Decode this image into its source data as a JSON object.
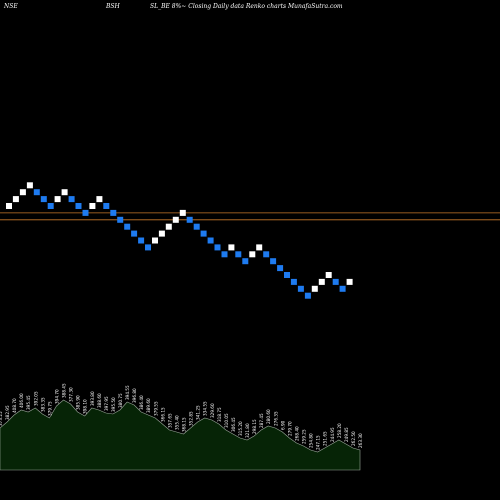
{
  "header": {
    "exchange": "NSE",
    "symbol": "BSH",
    "caption": "SL_BE 8%~ Closing Daily data  Renko  charts MunafaSutra.com"
  },
  "colors": {
    "background": "#000000",
    "up_brick": "#ffffff",
    "down_brick": "#1e7bf0",
    "level_line": "#c8782a",
    "volume_fill": "#062406",
    "volume_stroke": "#9aa89a",
    "volume_label": "#ffffff"
  },
  "chart_data": {
    "type": "renko",
    "title": "SL_BE 8%~ Closing Daily data  Renko  charts MunafaSutra.com",
    "bricks": [
      {
        "dir": "up",
        "level": 0
      },
      {
        "dir": "up",
        "level": 1
      },
      {
        "dir": "up",
        "level": 2
      },
      {
        "dir": "up",
        "level": 3
      },
      {
        "dir": "down",
        "level": 2
      },
      {
        "dir": "down",
        "level": 1
      },
      {
        "dir": "down",
        "level": 0
      },
      {
        "dir": "up",
        "level": 1
      },
      {
        "dir": "up",
        "level": 2
      },
      {
        "dir": "down",
        "level": 1
      },
      {
        "dir": "down",
        "level": 0
      },
      {
        "dir": "down",
        "level": -1
      },
      {
        "dir": "up",
        "level": 0
      },
      {
        "dir": "up",
        "level": 1
      },
      {
        "dir": "down",
        "level": 0
      },
      {
        "dir": "down",
        "level": -1
      },
      {
        "dir": "down",
        "level": -2
      },
      {
        "dir": "down",
        "level": -3
      },
      {
        "dir": "down",
        "level": -4
      },
      {
        "dir": "down",
        "level": -5
      },
      {
        "dir": "down",
        "level": -6
      },
      {
        "dir": "up",
        "level": -5
      },
      {
        "dir": "up",
        "level": -4
      },
      {
        "dir": "up",
        "level": -3
      },
      {
        "dir": "up",
        "level": -2
      },
      {
        "dir": "up",
        "level": -1
      },
      {
        "dir": "down",
        "level": -2
      },
      {
        "dir": "down",
        "level": -3
      },
      {
        "dir": "down",
        "level": -4
      },
      {
        "dir": "down",
        "level": -5
      },
      {
        "dir": "down",
        "level": -6
      },
      {
        "dir": "down",
        "level": -7
      },
      {
        "dir": "up",
        "level": -6
      },
      {
        "dir": "down",
        "level": -7
      },
      {
        "dir": "down",
        "level": -8
      },
      {
        "dir": "up",
        "level": -7
      },
      {
        "dir": "up",
        "level": -6
      },
      {
        "dir": "down",
        "level": -7
      },
      {
        "dir": "down",
        "level": -8
      },
      {
        "dir": "down",
        "level": -9
      },
      {
        "dir": "down",
        "level": -10
      },
      {
        "dir": "down",
        "level": -11
      },
      {
        "dir": "down",
        "level": -12
      },
      {
        "dir": "down",
        "level": -13
      },
      {
        "dir": "up",
        "level": -12
      },
      {
        "dir": "up",
        "level": -11
      },
      {
        "dir": "up",
        "level": -10
      },
      {
        "dir": "down",
        "level": -11
      },
      {
        "dir": "down",
        "level": -12
      },
      {
        "dir": "up",
        "level": -11
      }
    ],
    "reference_lines": [
      {
        "level": -1
      },
      {
        "level": -2
      }
    ],
    "volume": [
      42,
      48,
      55,
      60,
      58,
      62,
      56,
      52,
      64,
      70,
      66,
      58,
      54,
      62,
      60,
      57,
      56,
      60,
      68,
      65,
      58,
      55,
      52,
      46,
      40,
      38,
      36,
      42,
      48,
      52,
      50,
      46,
      40,
      36,
      32,
      30,
      34,
      40,
      44,
      42,
      38,
      32,
      27,
      24,
      20,
      18,
      22,
      26,
      30,
      26,
      22,
      20
    ],
    "volume_labels": [
      "373.25",
      "382.95",
      "408.70",
      "406.00",
      "395.45",
      "392.05",
      "383.35",
      "379.75",
      "394.70",
      "388.45",
      "377.30",
      "385.90",
      "398.10",
      "393.80",
      "388.60",
      "397.95",
      "395.50",
      "380.75",
      "394.55",
      "396.80",
      "386.40",
      "389.60",
      "379.55",
      "366.15",
      "357.65",
      "355.40",
      "368.15",
      "352.85",
      "341.25",
      "334.55",
      "329.60",
      "318.75",
      "310.05",
      "306.45",
      "315.20",
      "321.80",
      "298.15",
      "287.45",
      "280.60",
      "276.35",
      "6.90",
      "279.70",
      "268.40",
      "259.25",
      "254.80",
      "247.15",
      "251.65",
      "244.95",
      "258.20",
      "249.85",
      "262.50",
      "263.30"
    ]
  }
}
